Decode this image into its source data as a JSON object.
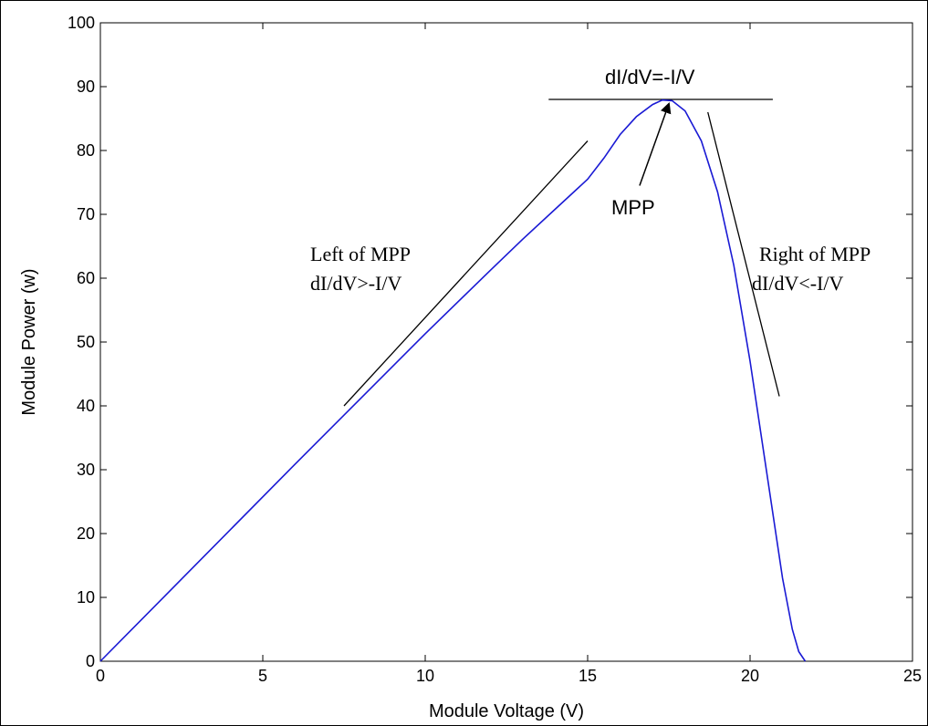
{
  "chart_data": {
    "type": "line",
    "title": "",
    "xlabel": "Module Voltage (V)",
    "ylabel": "Module Power (w)",
    "xlim": [
      0,
      25
    ],
    "ylim": [
      0,
      100
    ],
    "xticks": [
      0,
      5,
      10,
      15,
      20,
      25
    ],
    "yticks": [
      0,
      10,
      20,
      30,
      40,
      50,
      60,
      70,
      80,
      90,
      100
    ],
    "grid": false,
    "legend": "none",
    "series": [
      {
        "color": "#1a1ad4",
        "x": [
          0,
          2,
          4,
          6,
          8,
          10,
          12,
          13,
          14,
          15,
          15.5,
          16,
          16.5,
          17,
          17.3,
          17.6,
          18,
          18.5,
          19,
          19.5,
          20,
          20.5,
          21,
          21.3,
          21.5,
          21.7
        ],
        "y": [
          0,
          10.3,
          20.6,
          30.9,
          41.1,
          51.3,
          61.2,
          66.1,
          70.8,
          75.5,
          78.8,
          82.5,
          85.3,
          87.2,
          87.9,
          87.8,
          86.2,
          81.5,
          73.5,
          62,
          47,
          30,
          13,
          5,
          1.5,
          0
        ]
      }
    ],
    "tangents": [
      {
        "x": [
          7.5,
          15
        ],
        "y": [
          40,
          81.5
        ]
      },
      {
        "x": [
          13.8,
          20.7
        ],
        "y": [
          88,
          88
        ]
      },
      {
        "x": [
          18.7,
          20.9
        ],
        "y": [
          86,
          41.5
        ]
      }
    ],
    "annotations": {
      "top_formula": "dI/dV=-I/V",
      "mpp": "MPP",
      "left_line1": "Left of MPP",
      "left_line2": "dI/dV>-I/V",
      "right_line1": "Right of MPP",
      "right_line2": "dI/dV<-I/V"
    },
    "arrow": {
      "from": [
        16.6,
        74.5
      ],
      "to": [
        17.5,
        87.3
      ]
    }
  }
}
